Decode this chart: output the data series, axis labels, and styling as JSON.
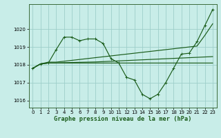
{
  "title": "Graphe pression niveau de la mer (hPa)",
  "xticks": [
    0,
    1,
    2,
    3,
    4,
    5,
    6,
    7,
    8,
    9,
    10,
    11,
    12,
    13,
    14,
    15,
    16,
    17,
    18,
    19,
    20,
    21,
    22,
    23
  ],
  "yticks": [
    1016,
    1017,
    1018,
    1019,
    1020
  ],
  "ylim": [
    1015.6,
    1021.4
  ],
  "xlim": [
    -0.5,
    23.5
  ],
  "bg_color": "#c8ede8",
  "grid_color": "#9ececa",
  "line_color": "#1a5c1a",
  "lines": [
    {
      "x": [
        0,
        1,
        2,
        3,
        4,
        5,
        6,
        7,
        8,
        9,
        10,
        11,
        12,
        13,
        14,
        15,
        16,
        17,
        18,
        19,
        20,
        21,
        22,
        23
      ],
      "y": [
        1017.8,
        1018.05,
        1018.1,
        1018.85,
        1019.55,
        1019.55,
        1019.35,
        1019.45,
        1019.45,
        1019.2,
        1018.35,
        1018.1,
        1017.3,
        1017.15,
        1016.35,
        1016.1,
        1016.35,
        1017.0,
        1017.8,
        1018.6,
        1018.65,
        1019.3,
        1020.2,
        1021.1
      ],
      "marker": "+"
    },
    {
      "x": [
        0,
        1,
        2,
        3,
        4,
        5,
        6,
        7,
        8,
        9,
        10,
        11,
        12,
        13,
        14,
        15,
        16,
        17,
        18,
        19,
        20,
        21,
        22,
        23
      ],
      "y": [
        1017.8,
        1018.05,
        1018.15,
        1018.15,
        1018.2,
        1018.25,
        1018.3,
        1018.35,
        1018.4,
        1018.45,
        1018.5,
        1018.55,
        1018.6,
        1018.65,
        1018.7,
        1018.75,
        1018.8,
        1018.85,
        1018.9,
        1018.95,
        1019.0,
        1019.05,
        1019.65,
        1020.3
      ],
      "marker": null
    },
    {
      "x": [
        0,
        1,
        2,
        3,
        4,
        5,
        6,
        7,
        8,
        9,
        10,
        11,
        12,
        13,
        14,
        15,
        16,
        17,
        18,
        19,
        20,
        21,
        22,
        23
      ],
      "y": [
        1017.8,
        1018.05,
        1018.1,
        1018.1,
        1018.12,
        1018.13,
        1018.14,
        1018.15,
        1018.16,
        1018.18,
        1018.2,
        1018.22,
        1018.24,
        1018.26,
        1018.28,
        1018.3,
        1018.32,
        1018.34,
        1018.36,
        1018.38,
        1018.4,
        1018.42,
        1018.44,
        1018.46
      ],
      "marker": null
    },
    {
      "x": [
        0,
        1,
        2,
        3,
        4,
        5,
        6,
        7,
        8,
        9,
        10,
        11,
        12,
        13,
        14,
        15,
        16,
        17,
        18,
        19,
        20,
        21,
        22,
        23
      ],
      "y": [
        1017.8,
        1018.05,
        1018.1,
        1018.1,
        1018.1,
        1018.1,
        1018.1,
        1018.1,
        1018.1,
        1018.1,
        1018.1,
        1018.1,
        1018.1,
        1018.1,
        1018.1,
        1018.1,
        1018.1,
        1018.1,
        1018.1,
        1018.1,
        1018.1,
        1018.1,
        1018.1,
        1018.1
      ],
      "marker": null
    }
  ],
  "tick_fontsize": 5.0,
  "label_fontsize": 6.2
}
